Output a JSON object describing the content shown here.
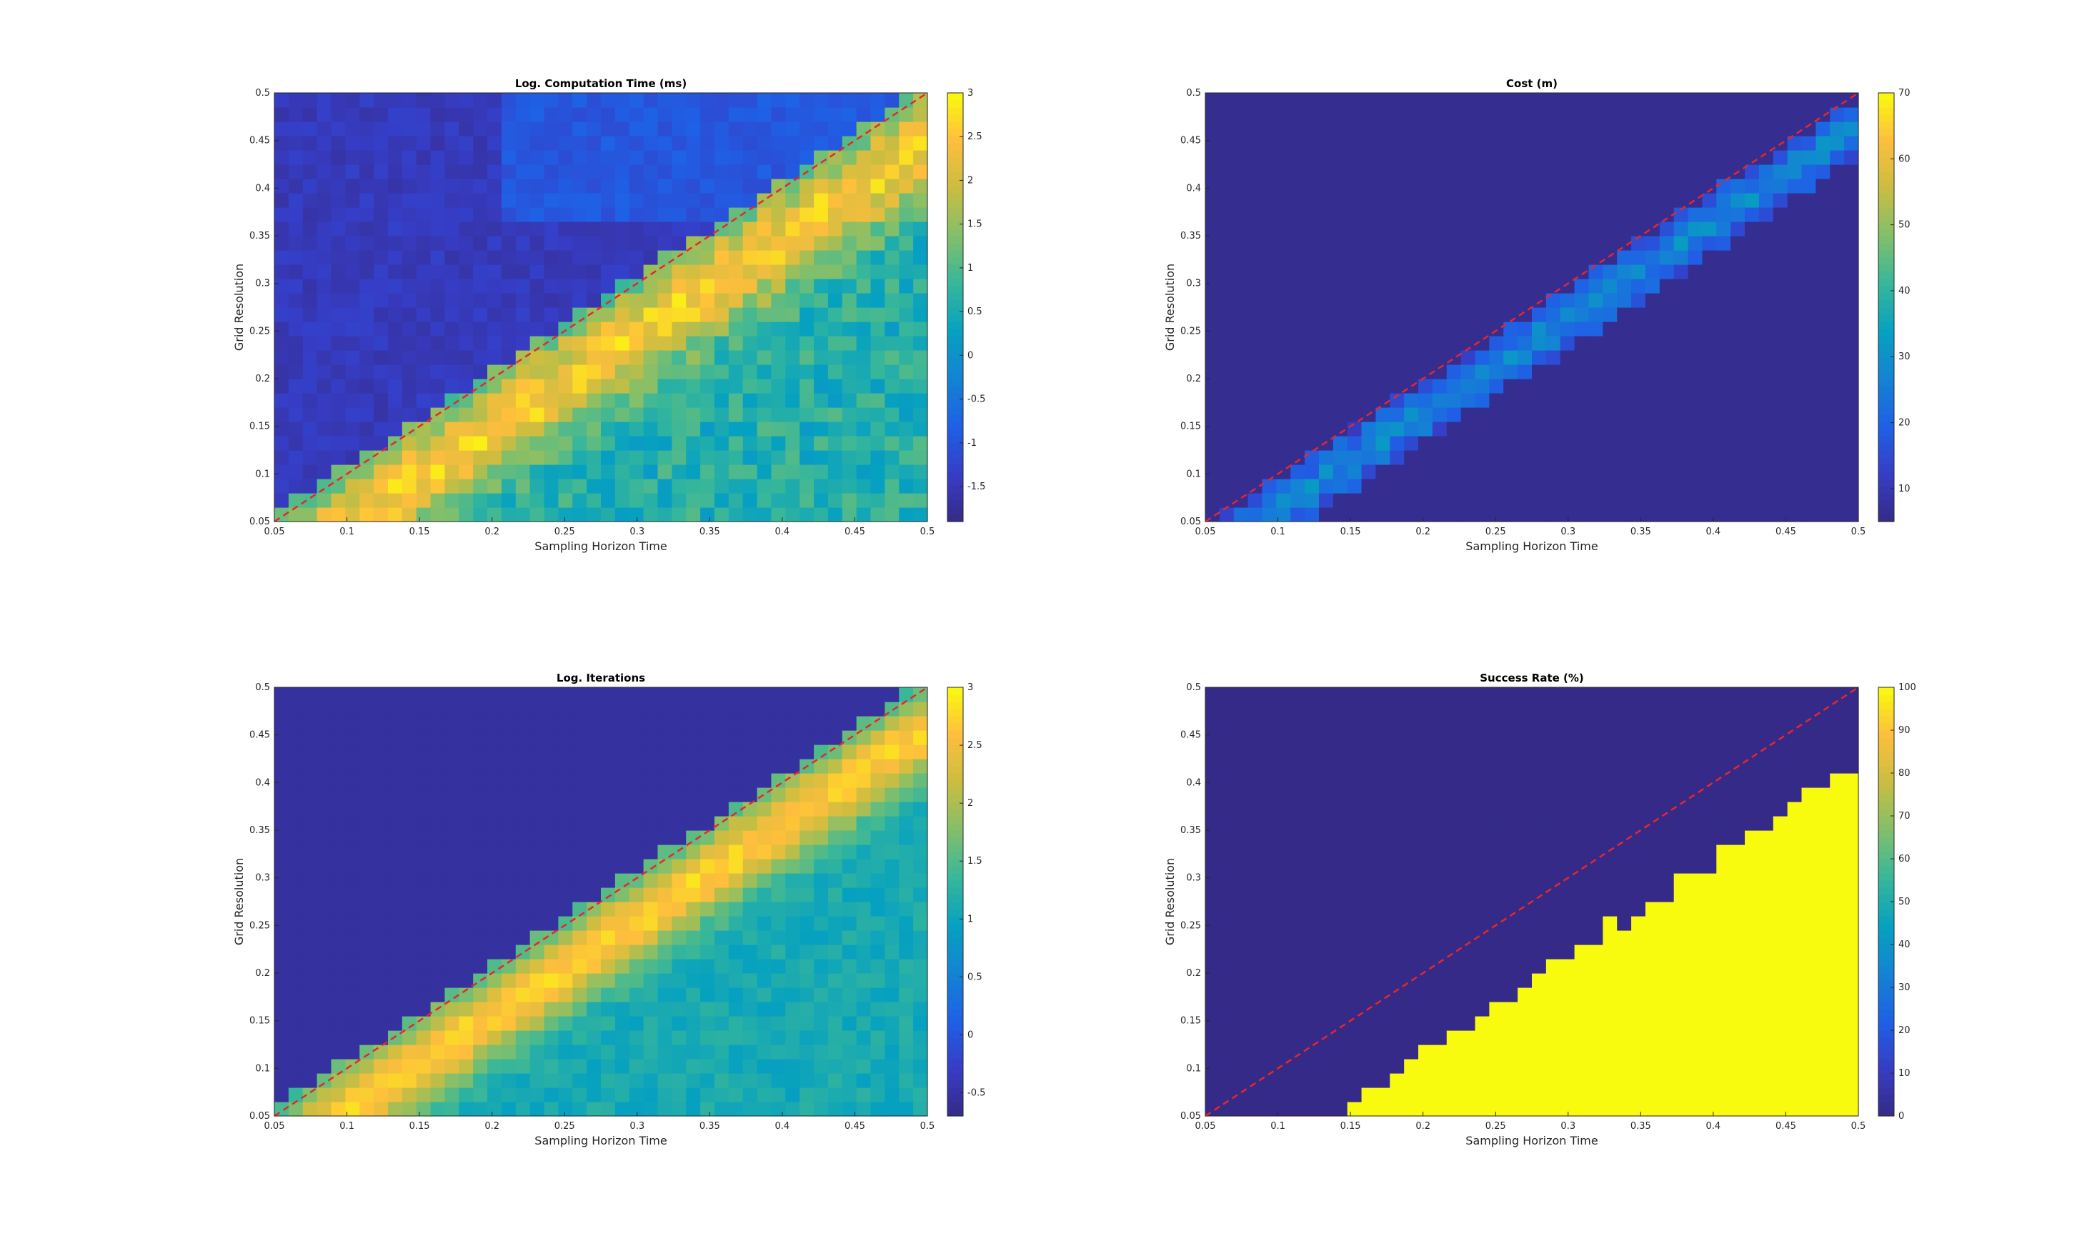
{
  "chart_data": [
    {
      "type": "heatmap",
      "title": "Log. Computation Time (ms)",
      "xlabel": "Sampling Horizon Time",
      "ylabel": "Grid Resolution",
      "xlim": [
        0.05,
        0.5
      ],
      "ylim": [
        0.05,
        0.5
      ],
      "x_ticks": [
        "0.05",
        "0.1",
        "0.15",
        "0.2",
        "0.25",
        "0.3",
        "0.35",
        "0.4",
        "0.45",
        "0.5"
      ],
      "y_ticks": [
        "0.05",
        "0.1",
        "0.15",
        "0.2",
        "0.25",
        "0.3",
        "0.35",
        "0.4",
        "0.45",
        "0.5"
      ],
      "colorbar": {
        "range": [
          -1.9,
          3.0
        ],
        "ticks": [
          "-1.5",
          "-1",
          "-0.5",
          "0",
          "0.5",
          "1",
          "1.5",
          "2",
          "2.5",
          "3"
        ],
        "tick_values": [
          -1.5,
          -1,
          -0.5,
          0,
          0.5,
          1,
          1.5,
          2,
          2.5,
          3
        ]
      },
      "reference_line": {
        "from": [
          0.05,
          0.05
        ],
        "to": [
          0.5,
          0.5
        ],
        "color": "#e8262b",
        "style": "dashed"
      },
      "surface": {
        "low": -1.6,
        "high": 2.6,
        "mode": "comp",
        "noise": 0.45
      }
    },
    {
      "type": "heatmap",
      "title": "Cost (m)",
      "xlabel": "Sampling Horizon Time",
      "ylabel": "Grid Resolution",
      "xlim": [
        0.05,
        0.5
      ],
      "ylim": [
        0.05,
        0.5
      ],
      "x_ticks": [
        "0.05",
        "0.1",
        "0.15",
        "0.2",
        "0.25",
        "0.3",
        "0.35",
        "0.4",
        "0.45",
        "0.5"
      ],
      "y_ticks": [
        "0.05",
        "0.1",
        "0.15",
        "0.2",
        "0.25",
        "0.3",
        "0.35",
        "0.4",
        "0.45",
        "0.5"
      ],
      "colorbar": {
        "range": [
          5,
          70
        ],
        "ticks": [
          "10",
          "20",
          "30",
          "40",
          "50",
          "60",
          "70"
        ],
        "tick_values": [
          10,
          20,
          30,
          40,
          50,
          60,
          70
        ]
      },
      "reference_line": {
        "from": [
          0.05,
          0.05
        ],
        "to": [
          0.5,
          0.5
        ],
        "color": "#e8262b",
        "style": "dashed"
      },
      "surface": {
        "low": 6,
        "high": 45,
        "mode": "cost",
        "noise": 6
      }
    },
    {
      "type": "heatmap",
      "title": "Log. Iterations",
      "xlabel": "Sampling Horizon Time",
      "ylabel": "Grid Resolution",
      "xlim": [
        0.05,
        0.5
      ],
      "ylim": [
        0.05,
        0.5
      ],
      "x_ticks": [
        "0.05",
        "0.1",
        "0.15",
        "0.2",
        "0.25",
        "0.3",
        "0.35",
        "0.4",
        "0.45",
        "0.5"
      ],
      "y_ticks": [
        "0.05",
        "0.1",
        "0.15",
        "0.2",
        "0.25",
        "0.3",
        "0.35",
        "0.4",
        "0.45",
        "0.5"
      ],
      "colorbar": {
        "range": [
          -0.7,
          3.0
        ],
        "ticks": [
          "-0.5",
          "0",
          "0.5",
          "1",
          "1.5",
          "2",
          "2.5",
          "3"
        ],
        "tick_values": [
          -0.5,
          0,
          0.5,
          1,
          1.5,
          2,
          2.5,
          3
        ]
      },
      "reference_line": {
        "from": [
          0.05,
          0.05
        ],
        "to": [
          0.5,
          0.5
        ],
        "color": "#e8262b",
        "style": "dashed"
      },
      "surface": {
        "low": -0.6,
        "high": 2.9,
        "mode": "iter",
        "noise": 0.25
      }
    },
    {
      "type": "heatmap",
      "title": "Success Rate (%)",
      "xlabel": "Sampling Horizon Time",
      "ylabel": "Grid Resolution",
      "xlim": [
        0.05,
        0.5
      ],
      "ylim": [
        0.05,
        0.5
      ],
      "x_ticks": [
        "0.05",
        "0.1",
        "0.15",
        "0.2",
        "0.25",
        "0.3",
        "0.35",
        "0.4",
        "0.45",
        "0.5"
      ],
      "y_ticks": [
        "0.05",
        "0.1",
        "0.15",
        "0.2",
        "0.25",
        "0.3",
        "0.35",
        "0.4",
        "0.45",
        "0.5"
      ],
      "colorbar": {
        "range": [
          0,
          100
        ],
        "ticks": [
          "0",
          "10",
          "20",
          "30",
          "40",
          "50",
          "60",
          "70",
          "80",
          "90",
          "100"
        ],
        "tick_values": [
          0,
          10,
          20,
          30,
          40,
          50,
          60,
          70,
          80,
          90,
          100
        ]
      },
      "reference_line": {
        "from": [
          0.05,
          0.05
        ],
        "to": [
          0.5,
          0.5
        ],
        "color": "#e8262b",
        "style": "dashed"
      },
      "surface": {
        "low": 0,
        "high": 100,
        "mode": "success",
        "noise": 0
      }
    }
  ]
}
